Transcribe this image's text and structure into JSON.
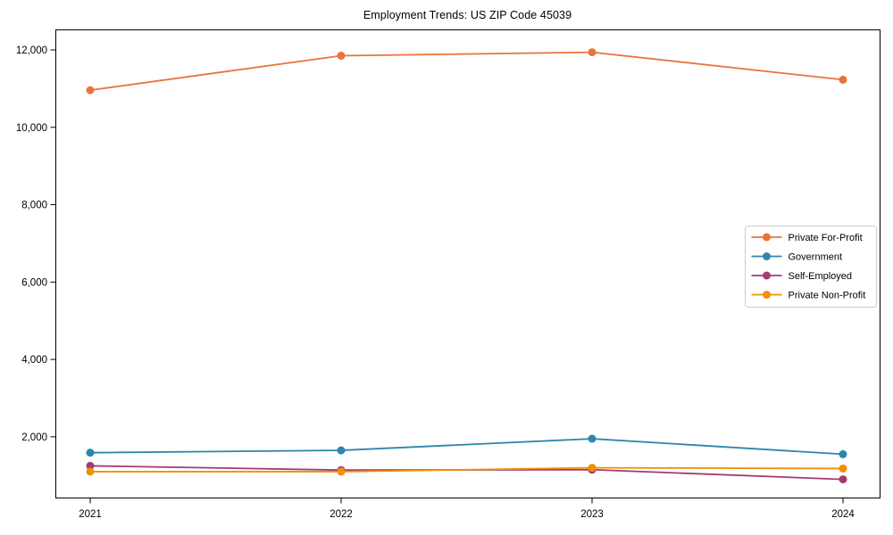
{
  "page": {
    "title": "Employment Trends: US ZIP Code 45039"
  },
  "chart_data": {
    "type": "line",
    "title": "Employment Trends: US ZIP Code 45039",
    "xlabel": "",
    "ylabel": "",
    "categories": [
      "2021",
      "2022",
      "2023",
      "2024"
    ],
    "series": [
      {
        "name": "Private For-Profit",
        "color": "#E8743B",
        "values": [
          10960,
          11850,
          11940,
          11230
        ]
      },
      {
        "name": "Government",
        "color": "#2E86AB",
        "values": [
          1590,
          1650,
          1950,
          1550
        ]
      },
      {
        "name": "Self-Employed",
        "color": "#A23B72",
        "values": [
          1250,
          1140,
          1150,
          900
        ]
      },
      {
        "name": "Private Non-Profit",
        "color": "#F18F01",
        "values": [
          1100,
          1100,
          1200,
          1180
        ]
      }
    ],
    "ylim": [
      430,
      12530
    ],
    "yticks": [
      2000,
      4000,
      6000,
      8000,
      10000,
      12000
    ],
    "ytick_labels": [
      "2,000",
      "4,000",
      "6,000",
      "8,000",
      "10,000",
      "12,000"
    ],
    "grid": false,
    "legend_position": "center right",
    "marker": "circle",
    "axis_color": "#000000",
    "legend_border_color": "#cccccc"
  }
}
